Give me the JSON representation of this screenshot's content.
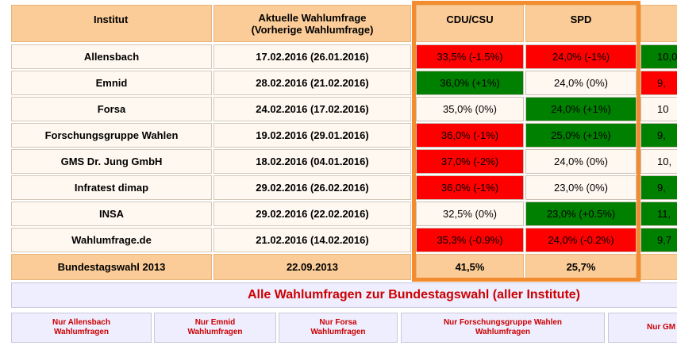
{
  "table": {
    "headers": {
      "institute": "Institut",
      "survey": "Aktuelle Wahlumfrage\n(Vorherige Wahlumfrage)",
      "cdu": "CDU/CSU",
      "spd": "SPD"
    },
    "rows": [
      {
        "institute": "Allensbach",
        "date": "17.02.2016 (26.01.2016)",
        "cdu": "33,5% (-1.5%)",
        "spd": "24,0% (-1%)",
        "next": "10,0"
      },
      {
        "institute": "Emnid",
        "date": "28.02.2016 (21.02.2016)",
        "cdu": "36,0% (+1%)",
        "spd": "24,0% (0%)",
        "next": "9,"
      },
      {
        "institute": "Forsa",
        "date": "24.02.2016 (17.02.2016)",
        "cdu": "35,0% (0%)",
        "spd": "24,0% (+1%)",
        "next": "10"
      },
      {
        "institute": "Forschungsgruppe Wahlen",
        "date": "19.02.2016 (29.01.2016)",
        "cdu": "36,0% (-1%)",
        "spd": "25,0% (+1%)",
        "next": "9,"
      },
      {
        "institute": "GMS Dr. Jung GmbH",
        "date": "18.02.2016 (04.01.2016)",
        "cdu": "37,0% (-2%)",
        "spd": "24,0% (0%)",
        "next": "10,"
      },
      {
        "institute": "Infratest dimap",
        "date": "29.02.2016 (26.02.2016)",
        "cdu": "36,0% (-1%)",
        "spd": "23,0% (0%)",
        "next": "9,"
      },
      {
        "institute": "INSA",
        "date": "29.02.2016 (22.02.2016)",
        "cdu": "32,5% (0%)",
        "spd": "23,0% (+0.5%)",
        "next": "11,"
      },
      {
        "institute": "Wahlumfrage.de",
        "date": "21.02.2016 (14.02.2016)",
        "cdu": "35,3% (-0.9%)",
        "spd": "24,0% (-0.2%)",
        "next": "9,7"
      }
    ],
    "footer": {
      "label": "Bundestagswahl 2013",
      "date": "22.09.2013",
      "cdu": "41,5%",
      "spd": "25,7%"
    }
  },
  "links": {
    "all": "Alle Wahlumfragen zur Bundestagswahl (aller Institute)",
    "institutes": [
      "Nur Allensbach\nWahlumfragen",
      "Nur Emnid\nWahlumfragen",
      "Nur Forsa\nWahlumfragen",
      "Nur Forschungsgruppe Wahlen\nWahlumfragen",
      "Nur GM"
    ]
  },
  "colors": {
    "header_bg": "#fbcc97",
    "red": "#ff0000",
    "green": "#008000",
    "neutral": "#fff8f0",
    "link_red": "#cc0000",
    "highlight": "#f28c2f"
  }
}
